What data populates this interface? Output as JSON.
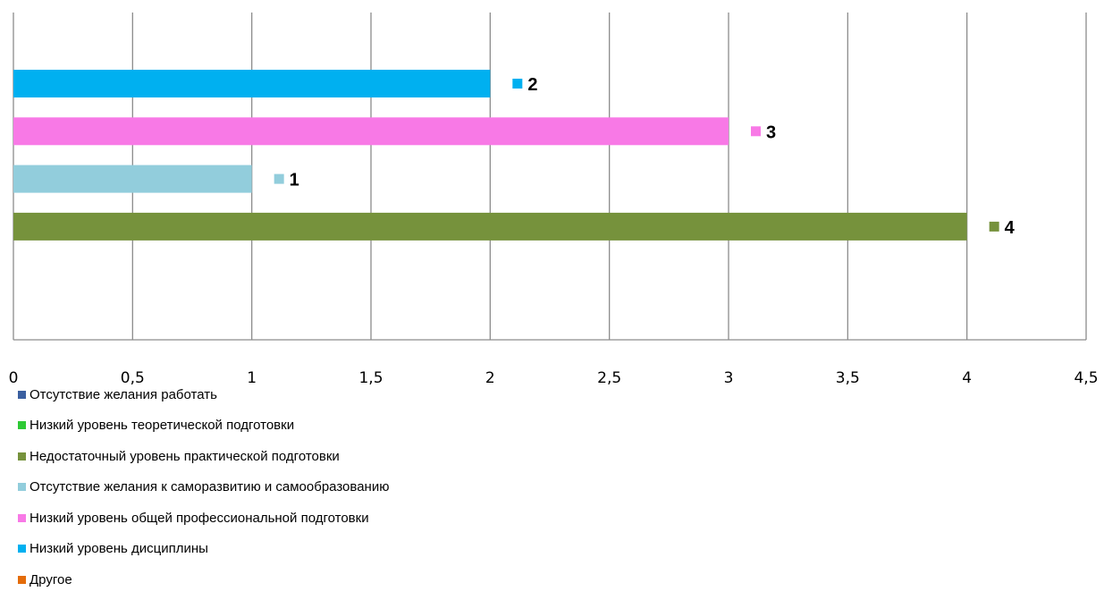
{
  "chart_data": {
    "type": "bar",
    "orientation": "horizontal",
    "x_ticks": [
      "0",
      "0,5",
      "1",
      "1,5",
      "2",
      "2,5",
      "3",
      "3,5",
      "4",
      "4,5"
    ],
    "xlim": [
      0,
      4.5
    ],
    "grid": true,
    "legend_position": "bottom-left",
    "series": [
      {
        "name": "Отсутствие желания работать",
        "color": "#3a5fa0",
        "value": null,
        "label": ""
      },
      {
        "name": "Низкий уровень теоретической подготовки",
        "color": "#2ec935",
        "value": null,
        "label": ""
      },
      {
        "name": "Недостаточный уровень практической подготовки",
        "color": "#76923c",
        "value": 4,
        "label": "4"
      },
      {
        "name": "Отсутствие желания к саморазвитию и самообразованию",
        "color": "#92cddc",
        "value": 1,
        "label": "1"
      },
      {
        "name": "Низкий уровень общей профессиональной подготовки",
        "color": "#f879e6",
        "value": 3,
        "label": "3"
      },
      {
        "name": "Низкий уровень дисциплины",
        "color": "#00b0f0",
        "value": 2,
        "label": "2"
      },
      {
        "name": "Другое",
        "color": "#e46c0a",
        "value": null,
        "label": ""
      }
    ]
  }
}
